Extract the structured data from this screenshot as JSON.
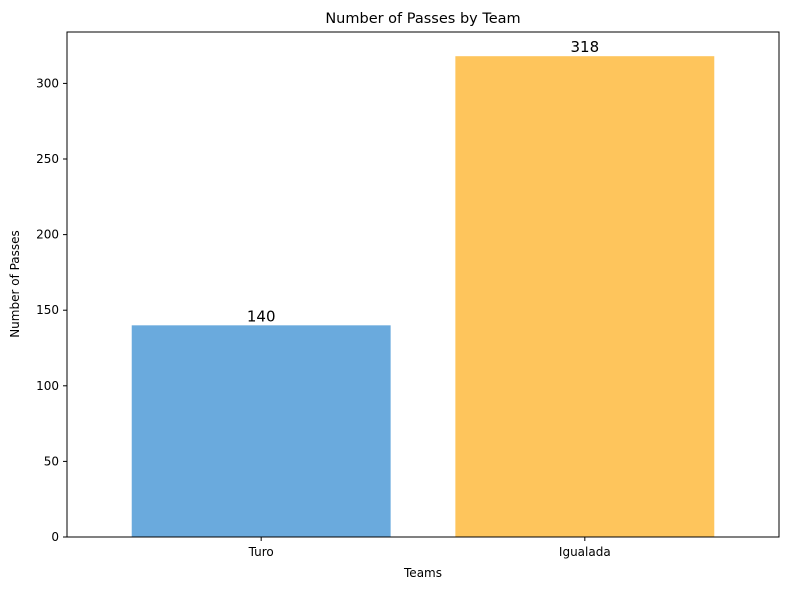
{
  "chart_data": {
    "type": "bar",
    "title": "Number of Passes by Team",
    "xlabel": "Teams",
    "ylabel": "Number of Passes",
    "categories": [
      "Turo",
      "Igualada"
    ],
    "values": [
      140,
      318
    ],
    "value_labels": [
      "140",
      "318"
    ],
    "colors": [
      "#6aaadd",
      "#fec55c"
    ],
    "ylim": [
      0,
      334
    ],
    "yticks": [
      0,
      50,
      100,
      150,
      200,
      250,
      300
    ],
    "grid": false,
    "legend": "none"
  }
}
